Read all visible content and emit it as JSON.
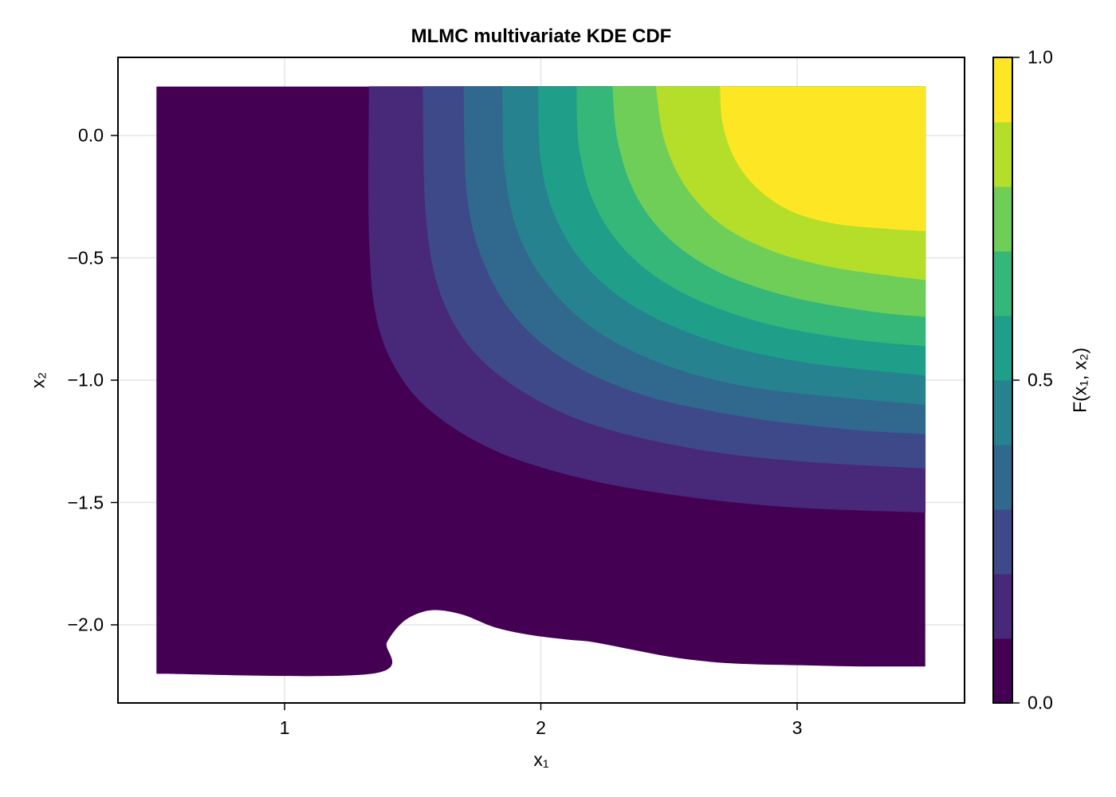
{
  "chart_data": {
    "type": "contourf",
    "title": "MLMC multivariate KDE CDF",
    "xlabel": "x₁",
    "ylabel": "x₂",
    "colorbar_label": "F(x₁, x₂)",
    "xlim": [
      0.35,
      3.65
    ],
    "ylim": [
      -2.32,
      0.32
    ],
    "data_extent": {
      "x": [
        0.5,
        3.5
      ],
      "y": [
        -2.2,
        0.2
      ]
    },
    "x_ticks": [
      {
        "value": 1,
        "label": "1"
      },
      {
        "value": 2,
        "label": "2"
      },
      {
        "value": 3,
        "label": "3"
      }
    ],
    "y_ticks": [
      {
        "value": 0.0,
        "label": "0.0"
      },
      {
        "value": -0.5,
        "label": "−0.5"
      },
      {
        "value": -1.0,
        "label": "−1.0"
      },
      {
        "value": -1.5,
        "label": "−1.5"
      },
      {
        "value": -2.0,
        "label": "−2.0"
      }
    ],
    "colorbar": {
      "range": [
        0.0,
        1.0
      ],
      "ticks": [
        {
          "value": 0.0,
          "label": "0.0"
        },
        {
          "value": 0.5,
          "label": "0.5"
        },
        {
          "value": 1.0,
          "label": "1.0"
        }
      ],
      "levels": [
        0.0,
        0.1,
        0.2,
        0.3,
        0.4,
        0.5,
        0.6,
        0.7,
        0.8,
        0.9,
        1.0
      ],
      "colors": [
        "#440154",
        "#482878",
        "#3e4989",
        "#31688e",
        "#26828e",
        "#1f9e89",
        "#35b779",
        "#6ece58",
        "#b5de2b",
        "#fde725"
      ]
    },
    "grid": true,
    "contour_boundaries_note": "Each level boundary given as list of [x1, x2] data points, running from top edge (x2=0.2) to right edge (x1=3.5)",
    "level_boundaries": [
      {
        "level": 0.1,
        "points": [
          [
            1.33,
            0.2
          ],
          [
            1.33,
            -0.4
          ],
          [
            1.36,
            -0.75
          ],
          [
            1.45,
            -0.98
          ],
          [
            1.6,
            -1.15
          ],
          [
            1.85,
            -1.3
          ],
          [
            2.2,
            -1.41
          ],
          [
            2.6,
            -1.48
          ],
          [
            3.0,
            -1.52
          ],
          [
            3.5,
            -1.54
          ]
        ]
      },
      {
        "level": 0.2,
        "points": [
          [
            1.54,
            0.2
          ],
          [
            1.55,
            -0.3
          ],
          [
            1.6,
            -0.62
          ],
          [
            1.72,
            -0.86
          ],
          [
            1.92,
            -1.04
          ],
          [
            2.2,
            -1.18
          ],
          [
            2.6,
            -1.28
          ],
          [
            3.0,
            -1.33
          ],
          [
            3.5,
            -1.36
          ]
        ]
      },
      {
        "level": 0.3,
        "points": [
          [
            1.7,
            0.2
          ],
          [
            1.71,
            -0.22
          ],
          [
            1.77,
            -0.5
          ],
          [
            1.9,
            -0.74
          ],
          [
            2.1,
            -0.92
          ],
          [
            2.4,
            -1.06
          ],
          [
            2.8,
            -1.15
          ],
          [
            3.2,
            -1.2
          ],
          [
            3.5,
            -1.22
          ]
        ]
      },
      {
        "level": 0.4,
        "points": [
          [
            1.85,
            0.2
          ],
          [
            1.86,
            -0.15
          ],
          [
            1.92,
            -0.42
          ],
          [
            2.05,
            -0.64
          ],
          [
            2.25,
            -0.82
          ],
          [
            2.55,
            -0.96
          ],
          [
            2.9,
            -1.04
          ],
          [
            3.5,
            -1.1
          ]
        ]
      },
      {
        "level": 0.5,
        "points": [
          [
            1.99,
            0.2
          ],
          [
            2.0,
            -0.1
          ],
          [
            2.06,
            -0.34
          ],
          [
            2.19,
            -0.55
          ],
          [
            2.4,
            -0.72
          ],
          [
            2.7,
            -0.85
          ],
          [
            3.05,
            -0.93
          ],
          [
            3.5,
            -0.98
          ]
        ]
      },
      {
        "level": 0.6,
        "points": [
          [
            2.14,
            0.2
          ],
          [
            2.15,
            -0.05
          ],
          [
            2.21,
            -0.28
          ],
          [
            2.34,
            -0.48
          ],
          [
            2.55,
            -0.64
          ],
          [
            2.85,
            -0.76
          ],
          [
            3.2,
            -0.83
          ],
          [
            3.5,
            -0.86
          ]
        ]
      },
      {
        "level": 0.7,
        "points": [
          [
            2.28,
            0.2
          ],
          [
            2.3,
            -0.02
          ],
          [
            2.37,
            -0.24
          ],
          [
            2.5,
            -0.42
          ],
          [
            2.7,
            -0.56
          ],
          [
            2.98,
            -0.66
          ],
          [
            3.3,
            -0.72
          ],
          [
            3.5,
            -0.74
          ]
        ]
      },
      {
        "level": 0.8,
        "points": [
          [
            2.45,
            0.2
          ],
          [
            2.48,
            -0.01
          ],
          [
            2.56,
            -0.2
          ],
          [
            2.7,
            -0.36
          ],
          [
            2.9,
            -0.47
          ],
          [
            3.15,
            -0.54
          ],
          [
            3.5,
            -0.59
          ]
        ]
      },
      {
        "level": 0.9,
        "points": [
          [
            2.7,
            0.2
          ],
          [
            2.71,
            0.05
          ],
          [
            2.76,
            -0.1
          ],
          [
            2.85,
            -0.22
          ],
          [
            2.98,
            -0.31
          ],
          [
            3.15,
            -0.36
          ],
          [
            3.35,
            -0.38
          ],
          [
            3.5,
            -0.39
          ]
        ]
      }
    ],
    "lower_boundary": [
      [
        0.5,
        -2.2
      ],
      [
        1.34,
        -2.2
      ],
      [
        1.4,
        -2.07
      ],
      [
        1.46,
        -1.99
      ],
      [
        1.53,
        -1.95
      ],
      [
        1.6,
        -1.94
      ],
      [
        1.7,
        -1.96
      ],
      [
        1.82,
        -2.01
      ],
      [
        1.95,
        -2.04
      ],
      [
        2.1,
        -2.06
      ],
      [
        2.2,
        -2.07
      ],
      [
        2.35,
        -2.1
      ],
      [
        2.5,
        -2.13
      ],
      [
        2.65,
        -2.15
      ],
      [
        2.8,
        -2.16
      ],
      [
        3.0,
        -2.165
      ],
      [
        3.25,
        -2.17
      ],
      [
        3.5,
        -2.17
      ]
    ]
  }
}
